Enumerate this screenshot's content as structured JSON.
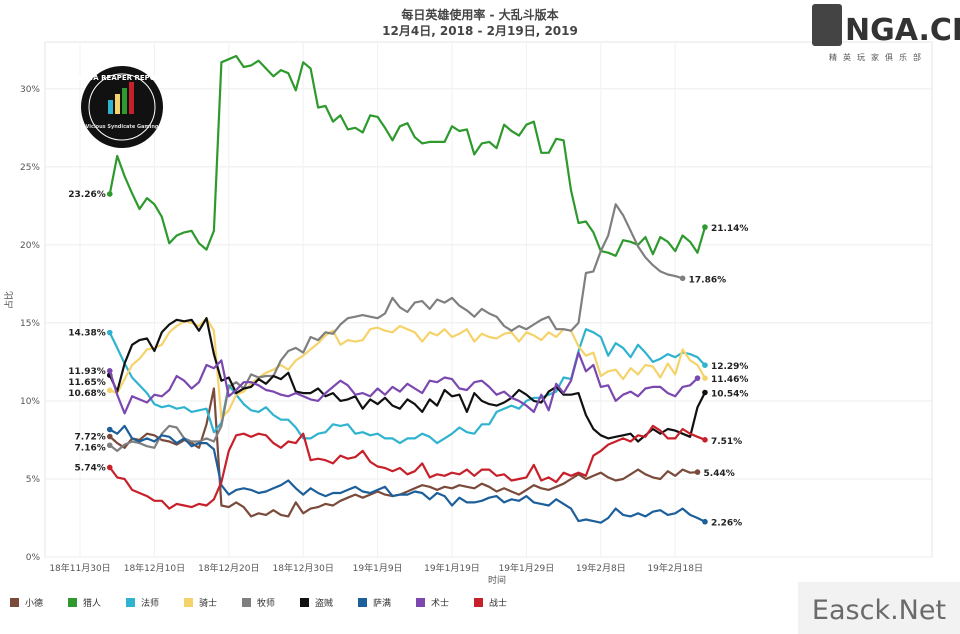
{
  "chart_data": {
    "type": "line",
    "title": "每日英雄使用率 - 大乱斗版本",
    "subtitle": "12月4日, 2018 - 2月19日, 2019",
    "xlabel": "时间",
    "ylabel": "占比",
    "y_ticks": [
      "0%",
      "5%",
      "10%",
      "15%",
      "20%",
      "25%",
      "30%"
    ],
    "ylim": [
      0,
      33
    ],
    "x_ticks": [
      {
        "label": "18年11月30日",
        "day": 0
      },
      {
        "label": "18年12月10日",
        "day": 10
      },
      {
        "label": "18年12月20日",
        "day": 20
      },
      {
        "label": "18年12月30日",
        "day": 30
      },
      {
        "label": "19年1月9日",
        "day": 40
      },
      {
        "label": "19年1月19日",
        "day": 50
      },
      {
        "label": "19年1月29日",
        "day": 60
      },
      {
        "label": "19年2月8日",
        "day": 70
      },
      {
        "label": "19年2月18日",
        "day": 80
      }
    ],
    "x_start_day": 4,
    "grid": true,
    "legend_position": "bottom",
    "series": [
      {
        "name": "小德",
        "color": "#7a4a3a",
        "values": [
          7.72,
          7.3,
          7.0,
          7.6,
          7.5,
          7.9,
          7.8,
          7.5,
          7.4,
          7.2,
          7.5,
          7.3,
          7.0,
          8.5,
          10.8,
          3.3,
          3.2,
          3.5,
          3.2,
          2.6,
          2.8,
          2.7,
          3.0,
          2.7,
          2.6,
          3.5,
          2.8,
          3.1,
          3.2,
          3.4,
          3.3,
          3.6,
          3.8,
          4.0,
          3.8,
          4.0,
          4.2,
          4.0,
          3.9,
          4.0,
          4.2,
          4.4,
          4.6,
          4.5,
          4.3,
          4.5,
          4.4,
          4.6,
          4.5,
          4.4,
          4.7,
          4.5,
          4.2,
          4.4,
          4.2,
          4.0,
          4.3,
          4.6,
          4.4,
          4.3,
          4.5,
          4.7,
          5.0,
          5.3,
          5.0,
          5.2,
          5.4,
          5.1,
          4.9,
          5.0,
          5.3,
          5.6,
          5.3,
          5.1,
          5.0,
          5.5,
          5.2,
          5.6,
          5.4,
          5.44
        ],
        "start_label": "7.72%",
        "end_label": "5.44%"
      },
      {
        "name": "猎人",
        "color": "#2e9a2e",
        "values": [
          23.26,
          25.7,
          24.4,
          23.3,
          22.3,
          23.0,
          22.6,
          21.8,
          20.1,
          20.6,
          20.8,
          20.9,
          20.1,
          19.7,
          20.9,
          31.7,
          31.9,
          32.1,
          31.4,
          31.5,
          31.8,
          31.3,
          30.8,
          31.2,
          31.0,
          29.9,
          31.7,
          31.3,
          28.8,
          28.9,
          27.9,
          28.3,
          27.4,
          27.5,
          27.2,
          28.3,
          28.2,
          27.5,
          26.7,
          27.6,
          27.8,
          26.9,
          26.5,
          26.6,
          26.6,
          26.6,
          27.6,
          27.3,
          27.4,
          25.8,
          26.5,
          26.6,
          26.2,
          27.7,
          27.3,
          27.0,
          27.7,
          27.9,
          25.9,
          25.9,
          26.8,
          26.7,
          23.5,
          21.4,
          21.5,
          20.8,
          19.6,
          19.5,
          19.3,
          20.3,
          20.2,
          20.0,
          20.5,
          19.4,
          20.5,
          20.2,
          19.6,
          20.6,
          20.2,
          19.5,
          21.14
        ],
        "start_label": "23.26%",
        "end_label": "21.14%"
      },
      {
        "name": "法师",
        "color": "#2fb3cf",
        "values": [
          14.38,
          13.4,
          12.4,
          11.5,
          11.0,
          10.5,
          9.8,
          9.6,
          9.7,
          9.5,
          9.6,
          9.3,
          9.4,
          9.5,
          8.0,
          8.6,
          11.0,
          10.4,
          9.8,
          9.4,
          9.3,
          9.6,
          9.1,
          8.8,
          8.8,
          8.3,
          7.6,
          7.6,
          7.9,
          8.0,
          8.5,
          8.4,
          8.5,
          7.9,
          8.0,
          7.8,
          7.9,
          7.6,
          7.6,
          7.3,
          7.6,
          7.6,
          7.9,
          7.7,
          7.3,
          7.6,
          7.9,
          8.3,
          8.0,
          7.9,
          8.5,
          8.5,
          9.3,
          9.5,
          9.7,
          9.5,
          10.0,
          10.2,
          10.2,
          10.4,
          10.6,
          11.5,
          11.4,
          13.2,
          14.6,
          14.4,
          14.1,
          12.9,
          13.7,
          13.4,
          12.8,
          13.6,
          13.1,
          12.5,
          12.7,
          13.0,
          12.8,
          13.1,
          13.0,
          12.8,
          12.29
        ],
        "start_label": "14.38%",
        "end_label": "12.29%"
      },
      {
        "name": "骑士",
        "color": "#f5d36b",
        "values": [
          10.68,
          10.5,
          11.4,
          12.3,
          12.7,
          13.3,
          13.4,
          13.6,
          14.4,
          14.8,
          15.1,
          15.0,
          14.8,
          15.3,
          14.5,
          8.9,
          9.4,
          10.4,
          10.6,
          11.1,
          11.5,
          11.8,
          12.0,
          12.3,
          12.0,
          12.6,
          12.9,
          13.3,
          13.7,
          14.2,
          14.5,
          13.6,
          13.9,
          13.8,
          13.9,
          14.6,
          14.7,
          14.5,
          14.4,
          14.8,
          14.6,
          14.4,
          13.8,
          14.4,
          14.2,
          14.6,
          14.1,
          14.3,
          14.6,
          13.8,
          14.3,
          14.1,
          14.0,
          14.3,
          14.4,
          13.8,
          14.4,
          14.2,
          13.9,
          14.4,
          14.1,
          14.6,
          14.5,
          13.5,
          12.9,
          13.1,
          11.6,
          11.9,
          12.0,
          11.4,
          12.1,
          11.7,
          12.3,
          12.2,
          11.5,
          12.4,
          11.7,
          13.3,
          12.6,
          12.3,
          11.46
        ],
        "start_label": "10.68%",
        "end_label": "11.46%"
      },
      {
        "name": "牧师",
        "color": "#7f7f7f",
        "values": [
          7.16,
          6.8,
          7.2,
          7.4,
          7.3,
          7.1,
          7.0,
          7.9,
          8.4,
          8.3,
          7.6,
          7.4,
          7.4,
          7.6,
          7.4,
          8.4,
          10.9,
          11.2,
          10.8,
          11.7,
          11.5,
          11.6,
          11.6,
          12.6,
          13.2,
          13.4,
          13.1,
          14.1,
          13.9,
          14.4,
          14.3,
          14.9,
          15.3,
          15.4,
          15.5,
          15.4,
          15.3,
          15.6,
          16.6,
          16.0,
          15.7,
          16.3,
          16.4,
          15.9,
          16.5,
          16.3,
          16.6,
          16.1,
          15.8,
          15.4,
          15.9,
          15.6,
          15.4,
          14.8,
          14.5,
          14.8,
          14.6,
          14.9,
          15.2,
          15.4,
          14.6,
          14.6,
          14.5,
          15.0,
          18.2,
          18.3,
          19.6,
          20.6,
          22.6,
          21.9,
          20.9,
          19.9,
          19.2,
          18.7,
          18.3,
          18.1,
          18.0,
          17.86
        ],
        "start_label": "7.16%",
        "end_label": "17.86%"
      },
      {
        "name": "盗贼",
        "color": "#111111",
        "values": [
          11.65,
          10.6,
          12.4,
          13.6,
          13.9,
          14.0,
          13.2,
          14.4,
          14.9,
          15.2,
          15.1,
          15.2,
          14.5,
          15.3,
          13.0,
          11.3,
          11.5,
          10.5,
          10.8,
          10.9,
          11.4,
          11.1,
          11.6,
          11.4,
          11.8,
          10.6,
          10.5,
          10.5,
          10.8,
          10.3,
          10.5,
          10.0,
          10.1,
          10.3,
          9.5,
          10.1,
          9.8,
          10.2,
          9.7,
          9.5,
          10.1,
          9.8,
          9.3,
          10.1,
          9.7,
          10.7,
          10.3,
          10.4,
          9.3,
          10.5,
          10.0,
          9.8,
          9.7,
          9.9,
          10.2,
          10.7,
          10.4,
          10.0,
          9.9,
          10.6,
          10.9,
          10.4,
          10.4,
          10.5,
          9.1,
          8.2,
          7.8,
          7.6,
          7.7,
          7.8,
          7.9,
          7.4,
          7.8,
          8.2,
          7.9,
          8.2,
          8.1,
          7.9,
          7.7,
          9.6,
          10.54
        ],
        "start_label": "11.65%",
        "end_label": "10.54%"
      },
      {
        "name": "萨满",
        "color": "#1d5f9a",
        "values": [
          8.17,
          7.9,
          8.4,
          7.6,
          7.4,
          7.6,
          7.4,
          7.8,
          7.7,
          7.3,
          7.6,
          7.1,
          7.3,
          7.3,
          6.9,
          4.6,
          4.0,
          4.3,
          4.4,
          4.3,
          4.1,
          4.2,
          4.4,
          4.6,
          4.9,
          4.4,
          4.0,
          4.4,
          4.1,
          3.9,
          4.1,
          4.1,
          4.3,
          4.5,
          4.2,
          4.1,
          4.3,
          4.5,
          3.9,
          4.0,
          4.0,
          4.2,
          4.1,
          3.7,
          4.1,
          3.9,
          3.3,
          3.8,
          3.5,
          3.5,
          3.6,
          3.8,
          3.9,
          3.5,
          3.7,
          3.6,
          3.9,
          3.5,
          3.4,
          3.3,
          3.7,
          3.4,
          3.1,
          2.3,
          2.4,
          2.3,
          2.2,
          2.5,
          3.1,
          2.7,
          2.6,
          2.8,
          2.6,
          2.9,
          3.0,
          2.7,
          2.8,
          3.1,
          2.7,
          2.5,
          2.26
        ],
        "start_label": "",
        "end_label": "2.26%"
      },
      {
        "name": "术士",
        "color": "#7b48b0",
        "values": [
          11.93,
          10.4,
          9.2,
          10.3,
          10.1,
          9.9,
          10.4,
          10.3,
          10.7,
          11.6,
          11.3,
          10.8,
          11.2,
          12.3,
          12.1,
          12.6,
          10.3,
          10.7,
          11.2,
          11.2,
          11.0,
          10.7,
          10.6,
          10.4,
          10.3,
          10.5,
          10.3,
          10.1,
          10.0,
          10.5,
          10.9,
          11.3,
          11.0,
          10.4,
          10.5,
          10.3,
          10.8,
          10.4,
          10.9,
          10.6,
          11.1,
          10.8,
          10.5,
          11.3,
          11.2,
          11.5,
          11.4,
          10.8,
          10.7,
          11.2,
          11.3,
          10.9,
          10.4,
          10.6,
          10.2,
          10.0,
          9.7,
          9.3,
          10.4,
          9.4,
          11.1,
          10.5,
          11.3,
          13.1,
          11.9,
          12.3,
          10.9,
          11.0,
          10.0,
          10.4,
          10.6,
          10.3,
          10.8,
          10.9,
          10.9,
          10.5,
          10.3,
          10.9,
          11.0,
          11.46
        ],
        "start_label": "11.93%",
        "end_label": ""
      },
      {
        "name": "战士",
        "color": "#c8202a",
        "values": [
          5.74,
          5.1,
          5.0,
          4.3,
          4.1,
          3.9,
          3.6,
          3.6,
          3.1,
          3.4,
          3.3,
          3.2,
          3.4,
          3.3,
          3.7,
          4.8,
          6.8,
          7.8,
          7.9,
          7.7,
          7.9,
          7.8,
          7.3,
          7.0,
          7.4,
          7.3,
          7.9,
          6.2,
          6.3,
          6.2,
          6.0,
          6.5,
          6.3,
          6.4,
          6.8,
          6.1,
          5.8,
          5.7,
          5.5,
          5.7,
          5.3,
          5.5,
          6.0,
          5.1,
          5.3,
          5.2,
          5.4,
          5.3,
          5.6,
          5.2,
          5.6,
          5.6,
          5.2,
          5.3,
          4.9,
          5.0,
          5.1,
          5.9,
          4.9,
          5.1,
          4.8,
          5.4,
          5.2,
          5.4,
          5.2,
          6.5,
          6.8,
          7.2,
          7.4,
          7.6,
          7.4,
          7.8,
          7.7,
          8.4,
          8.1,
          7.6,
          7.6,
          8.2,
          7.9,
          7.7,
          7.51
        ],
        "start_label": "5.74%",
        "end_label": "7.51%"
      }
    ]
  },
  "watermarks": {
    "report_badge": "DATA REAPER REPORT",
    "report_badge_sub": "Vicious Syndicate Gaming",
    "site_logo": "NGA.CN",
    "site_logo_sub": "精英玩家俱乐部",
    "corner_brand": "Easck.Net"
  }
}
